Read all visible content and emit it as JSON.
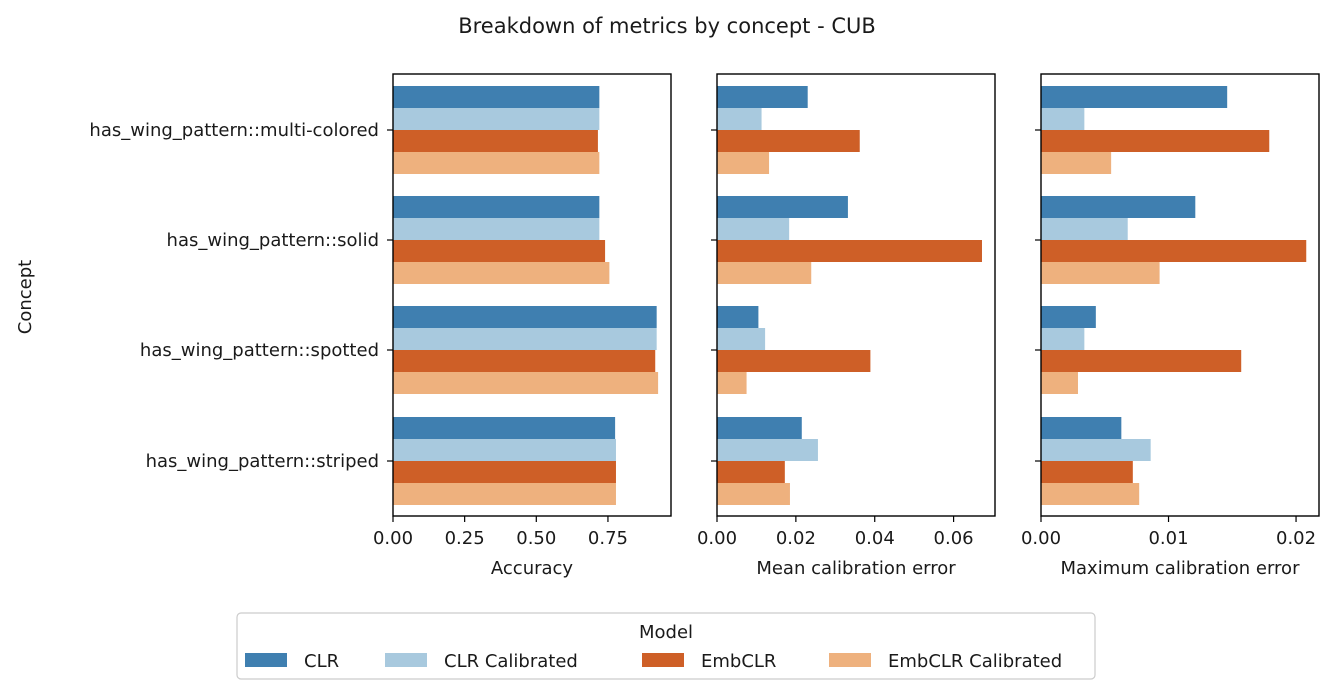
{
  "figure": {
    "title": "Breakdown of metrics by concept - CUB",
    "ylabel": "Concept"
  },
  "legend": {
    "title": "Model",
    "entries": [
      "CLR",
      "CLR Calibrated",
      "EmbCLR",
      "EmbCLR Calibrated"
    ],
    "placement": "bottom-center"
  },
  "colors": {
    "CLR": "#3f7fb0",
    "CLR Calibrated": "#a8c9de",
    "EmbCLR": "#ce5f27",
    "EmbCLR Calibrated": "#eeb17e"
  },
  "chart_data": [
    {
      "type": "bar",
      "orientation": "horizontal",
      "categories": [
        "has_wing_pattern::multi-colored",
        "has_wing_pattern::solid",
        "has_wing_pattern::spotted",
        "has_wing_pattern::striped"
      ],
      "xlabel": "Accuracy",
      "ylabel": "Concept",
      "xlim": [
        0,
        0.97
      ],
      "xticks": [
        0.0,
        0.25,
        0.5,
        0.75
      ],
      "xtick_labels": [
        "0.00",
        "0.25",
        "0.50",
        "0.75"
      ],
      "grid": false,
      "series": [
        {
          "name": "CLR",
          "values": [
            0.72,
            0.72,
            0.92,
            0.775
          ]
        },
        {
          "name": "CLR Calibrated",
          "values": [
            0.72,
            0.72,
            0.92,
            0.778
          ]
        },
        {
          "name": "EmbCLR",
          "values": [
            0.715,
            0.74,
            0.915,
            0.778
          ]
        },
        {
          "name": "EmbCLR Calibrated",
          "values": [
            0.72,
            0.755,
            0.925,
            0.778
          ]
        }
      ]
    },
    {
      "type": "bar",
      "orientation": "horizontal",
      "categories": [
        "has_wing_pattern::multi-colored",
        "has_wing_pattern::solid",
        "has_wing_pattern::spotted",
        "has_wing_pattern::striped"
      ],
      "xlabel": "Mean calibration error",
      "xlim": [
        0,
        0.0705
      ],
      "xticks": [
        0.0,
        0.02,
        0.04,
        0.06
      ],
      "xtick_labels": [
        "0.00",
        "0.02",
        "0.04",
        "0.06"
      ],
      "grid": false,
      "series": [
        {
          "name": "CLR",
          "values": [
            0.023,
            0.0332,
            0.0105,
            0.0215
          ]
        },
        {
          "name": "CLR Calibrated",
          "values": [
            0.0113,
            0.0183,
            0.0122,
            0.0256
          ]
        },
        {
          "name": "EmbCLR",
          "values": [
            0.0362,
            0.0672,
            0.0389,
            0.0172
          ]
        },
        {
          "name": "EmbCLR Calibrated",
          "values": [
            0.0132,
            0.0239,
            0.0075,
            0.0185
          ]
        }
      ]
    },
    {
      "type": "bar",
      "orientation": "horizontal",
      "categories": [
        "has_wing_pattern::multi-colored",
        "has_wing_pattern::solid",
        "has_wing_pattern::spotted",
        "has_wing_pattern::striped"
      ],
      "xlabel": "Maximum calibration error",
      "xlim": [
        0,
        0.0218
      ],
      "xticks": [
        0.0,
        0.01,
        0.02
      ],
      "xtick_labels": [
        "0.00",
        "0.01",
        "0.02"
      ],
      "grid": false,
      "series": [
        {
          "name": "CLR",
          "values": [
            0.0146,
            0.0121,
            0.0043,
            0.0063
          ]
        },
        {
          "name": "CLR Calibrated",
          "values": [
            0.0034,
            0.0068,
            0.0034,
            0.0086
          ]
        },
        {
          "name": "EmbCLR",
          "values": [
            0.0179,
            0.0208,
            0.0157,
            0.0072
          ]
        },
        {
          "name": "EmbCLR Calibrated",
          "values": [
            0.0055,
            0.0093,
            0.0029,
            0.0077
          ]
        }
      ]
    }
  ]
}
